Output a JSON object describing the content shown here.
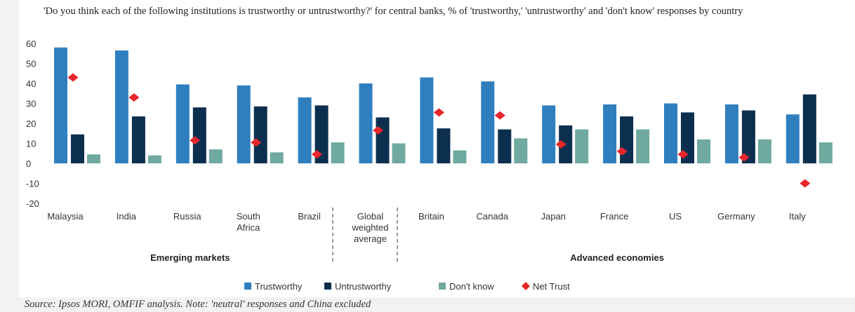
{
  "chart_data": {
    "type": "bar",
    "title": "'Do you think each of the following institutions is trustworthy or untrustworthy?' for central banks, % of 'trustworthy,' 'untrustworthy' and 'don't know' responses by country",
    "categories": [
      "Malaysia",
      "India",
      "Russia",
      "South Africa",
      "Brazil",
      "Global weighted average",
      "Britain",
      "Canada",
      "Japan",
      "France",
      "US",
      "Germany",
      "Italy"
    ],
    "category_lines": [
      [
        "Malaysia"
      ],
      [
        "India"
      ],
      [
        "Russia"
      ],
      [
        "South",
        "Africa"
      ],
      [
        "Brazil"
      ],
      [
        "Global",
        "weighted",
        "average"
      ],
      [
        "Britain"
      ],
      [
        "Canada"
      ],
      [
        "Japan"
      ],
      [
        "France"
      ],
      [
        "US"
      ],
      [
        "Germany"
      ],
      [
        "Italy"
      ]
    ],
    "groups": [
      {
        "label": "Emerging markets",
        "start": 0,
        "end": 4
      },
      {
        "label": "Advanced economies",
        "start": 6,
        "end": 12
      }
    ],
    "series": [
      {
        "name": "Trustworthy",
        "type": "bar",
        "color": "#2f7fbf",
        "values": [
          58,
          56.5,
          39.5,
          39,
          33,
          40,
          43,
          41,
          29,
          29.5,
          30,
          29.5,
          24.5
        ]
      },
      {
        "name": "Untrustworthy",
        "type": "bar",
        "color": "#0d2f4f",
        "values": [
          14.5,
          23.5,
          28,
          28.5,
          29,
          23,
          17.5,
          17,
          19,
          23.5,
          25.5,
          26.5,
          34.5
        ]
      },
      {
        "name": "Don't know",
        "type": "bar",
        "color": "#6fa99f",
        "values": [
          4.5,
          4,
          7,
          5.5,
          10.5,
          10,
          6.5,
          12.5,
          17,
          17,
          12,
          12,
          10.5
        ]
      },
      {
        "name": "Net Trust",
        "type": "marker",
        "color": "#e8262c",
        "values": [
          43,
          33,
          11.5,
          10.5,
          4.5,
          16.5,
          25.5,
          24,
          9.5,
          6,
          4.5,
          3,
          -10
        ]
      }
    ],
    "yticks": [
      60,
      50,
      40,
      30,
      20,
      10,
      0,
      -10,
      -20
    ],
    "ylim": [
      -20,
      60
    ],
    "grid": false,
    "legend_position": "bottom"
  },
  "source": "Source: Ipsos MORI, OMFIF analysis. Note: 'neutral' responses and China excluded"
}
